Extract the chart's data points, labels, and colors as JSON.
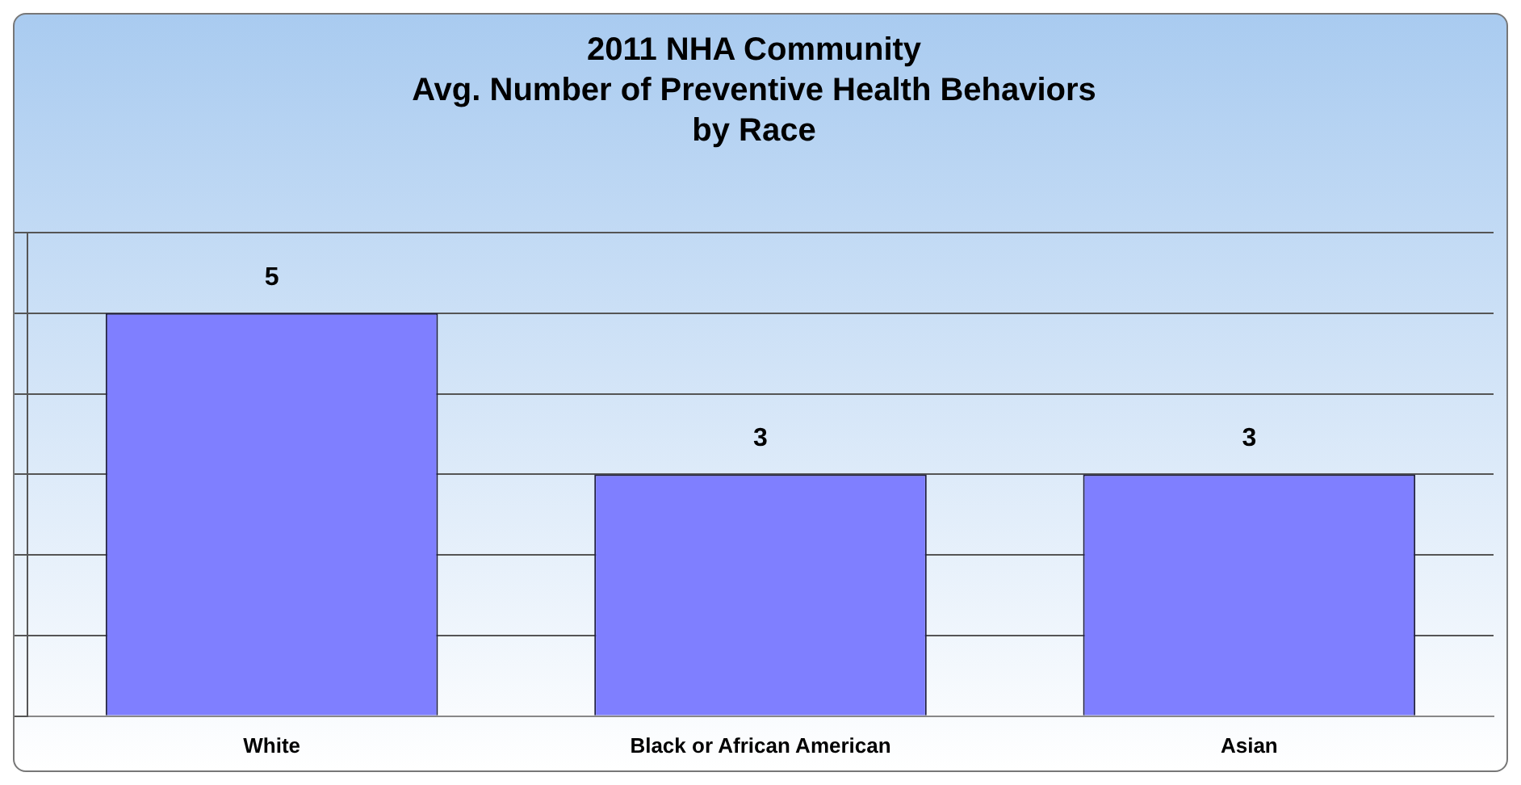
{
  "chart_data": {
    "type": "bar",
    "title": "2011 NHA Community\nAvg. Number of Preventive Health Behaviors\nby Race",
    "categories": [
      "White",
      "Black or African American",
      "Asian"
    ],
    "values": [
      5,
      3,
      3
    ],
    "color": "#7f7fff",
    "ylim": [
      0,
      6
    ],
    "yticks": [
      {
        "value": 0,
        "label": null
      },
      {
        "value": 1,
        "label": null
      },
      {
        "value": 2,
        "label": null
      },
      {
        "value": 3,
        "label": null
      },
      {
        "value": 4,
        "label": null
      },
      {
        "value": 5,
        "label": null
      },
      {
        "value": 6,
        "label": null
      }
    ],
    "grid": "y",
    "tick_labels": "x",
    "data_labels": true
  }
}
